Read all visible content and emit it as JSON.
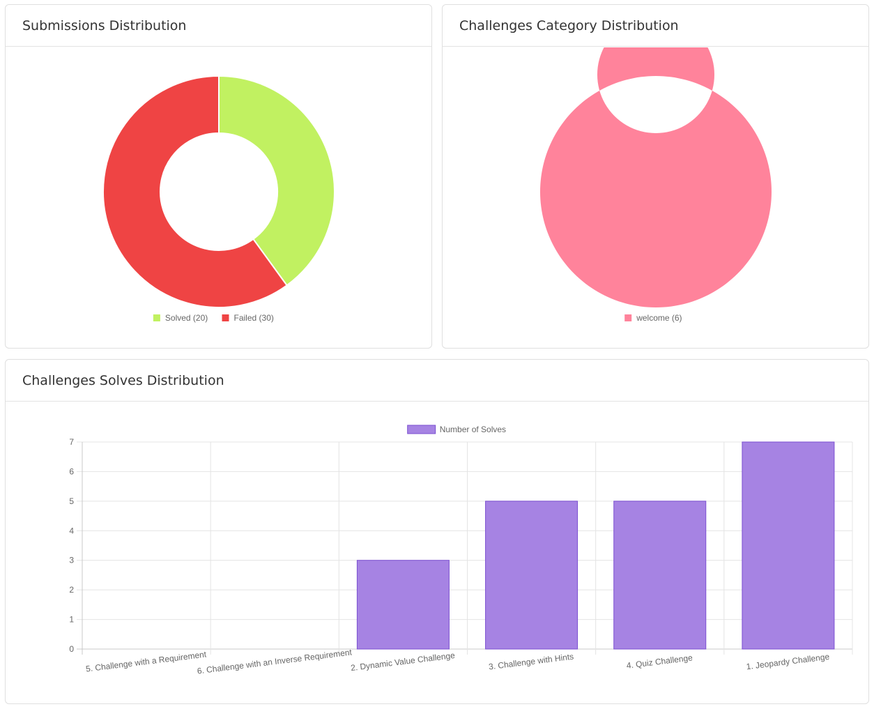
{
  "chart_data": [
    {
      "type": "pie",
      "title": "Submissions Distribution",
      "categories": [
        "Solved",
        "Failed"
      ],
      "values": [
        20,
        30
      ],
      "colors": [
        "#c1f161",
        "#ef4444"
      ],
      "legend_labels": [
        "Solved (20)",
        "Failed (30)"
      ],
      "legend": "bottom"
    },
    {
      "type": "pie",
      "title": "Challenges Category Distribution",
      "categories": [
        "welcome"
      ],
      "values": [
        6
      ],
      "colors": [
        "#ff839b"
      ],
      "legend_labels": [
        "welcome (6)"
      ],
      "legend": "bottom"
    },
    {
      "type": "bar",
      "title": "Challenges Solves Distribution",
      "categories": [
        "5. Challenge with a Requirement",
        "6. Challenge with an Inverse Requirement",
        "2. Dynamic Value Challenge",
        "3. Challenge with Hints",
        "4. Quiz Challenge",
        "1. Jeopardy Challenge"
      ],
      "series": [
        {
          "name": "Number of Solves",
          "values": [
            0,
            0,
            3,
            5,
            5,
            7
          ]
        }
      ],
      "ylim": [
        0,
        7
      ],
      "yticks": [
        "0",
        "1",
        "2",
        "3",
        "4",
        "5",
        "6",
        "7"
      ],
      "color": "#a683e3",
      "border_color": "#7b4fd1",
      "grid": true,
      "legend": "top",
      "xlabel": "",
      "ylabel": ""
    }
  ]
}
